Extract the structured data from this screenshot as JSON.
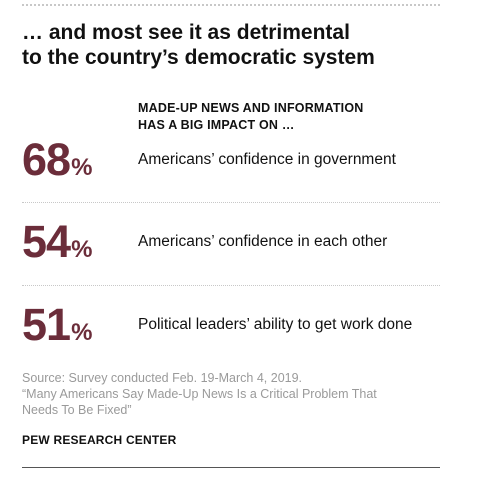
{
  "title_lines": [
    "… and most see it as detrimental",
    "to the country’s democratic system"
  ],
  "header_lines": [
    "MADE-UP NEWS AND INFORMATION",
    "HAS A BIG IMPACT ON …"
  ],
  "rows": [
    {
      "value": "68",
      "unit": "%",
      "label": "Americans’ confidence in government"
    },
    {
      "value": "54",
      "unit": "%",
      "label": "Americans’ confidence in each other"
    },
    {
      "value": "51",
      "unit": "%",
      "label": "Political leaders’ ability to get work done"
    }
  ],
  "source_lines": [
    "Source: Survey conducted Feb. 19-March 4, 2019.",
    "“Many Americans Say Made-Up News Is a Critical Problem That",
    "Needs To Be Fixed”"
  ],
  "brand": "PEW RESEARCH CENTER",
  "colors": {
    "stat": "#6b2d3a",
    "source": "#9a9a9a"
  }
}
